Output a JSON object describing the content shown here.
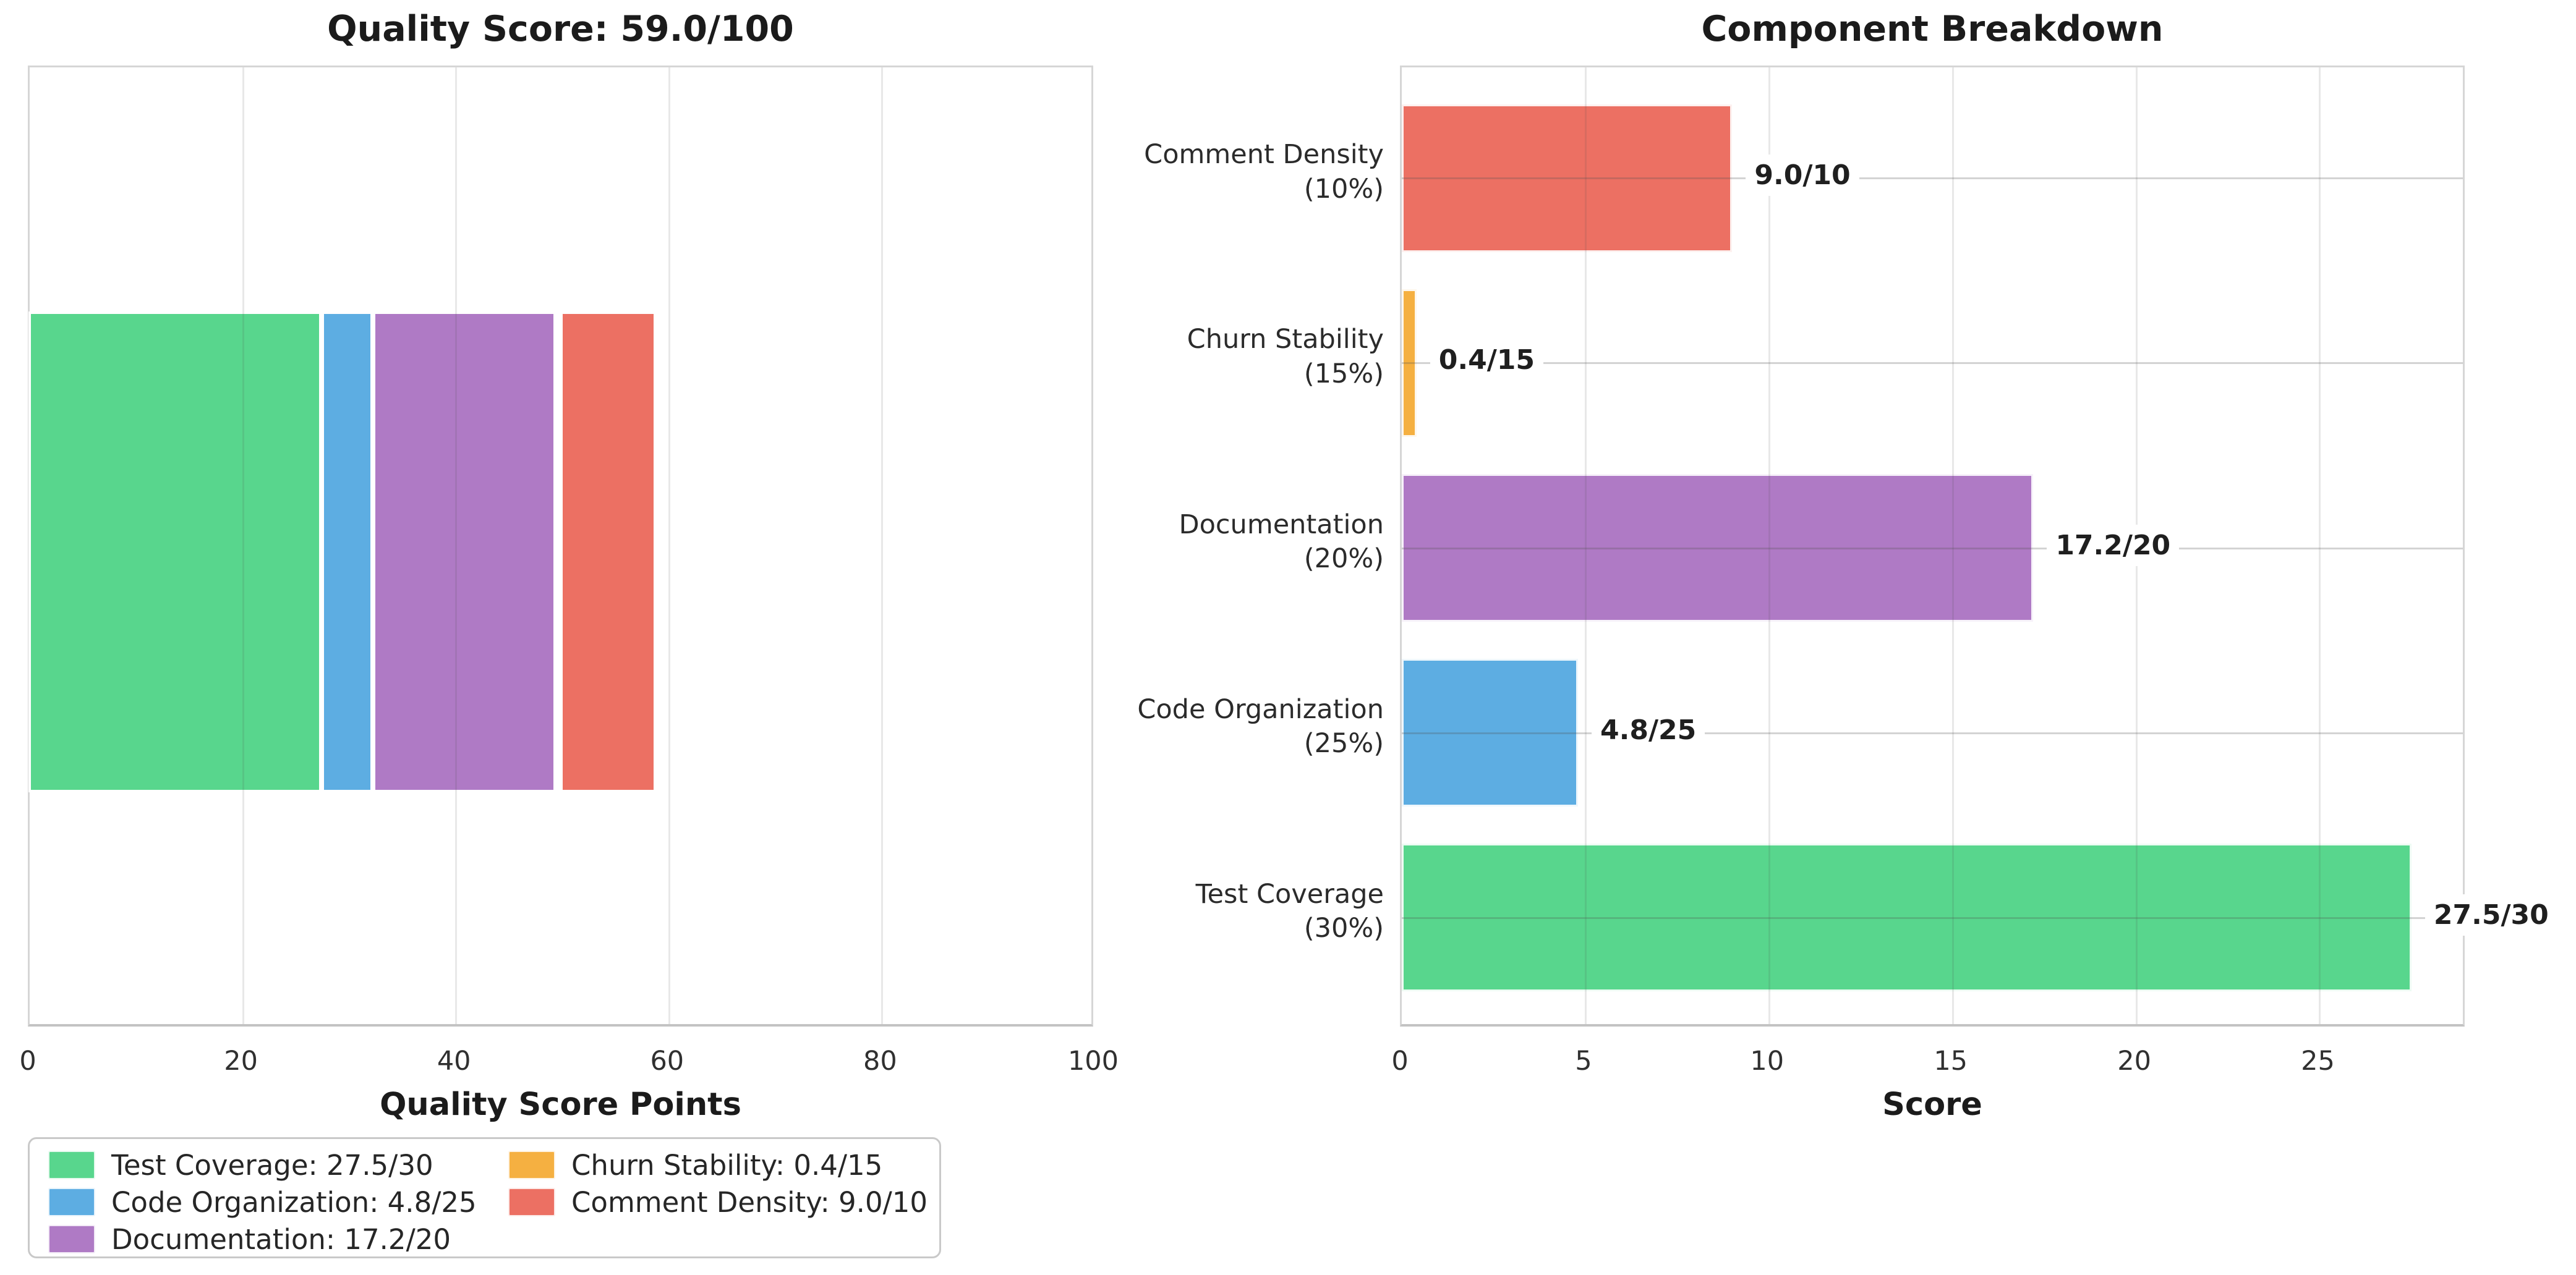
{
  "figure": {
    "background": "#ffffff",
    "text_color": "#262626"
  },
  "palette": {
    "test_coverage": "#58d68d",
    "code_organization": "#5dade2",
    "documentation": "#af7ac5",
    "churn_stability": "#f5b041",
    "comment_density": "#ec7063"
  },
  "chart_data": [
    {
      "type": "bar",
      "subtype": "horizontal-stacked",
      "title": "Quality Score: 59.0/100",
      "xlabel": "Quality Score Points",
      "xlim": [
        0,
        100
      ],
      "xticks": [
        "0",
        "20",
        "40",
        "60",
        "80",
        "100"
      ],
      "xtick_values": [
        0,
        20,
        40,
        60,
        80,
        100
      ],
      "grid": "vertical-only",
      "total": 59.0,
      "total_max": 100,
      "segments": [
        {
          "name": "Test Coverage",
          "value": 27.5,
          "max": 30,
          "color": "#58d68d"
        },
        {
          "name": "Code Organization",
          "value": 4.8,
          "max": 25,
          "color": "#5dade2"
        },
        {
          "name": "Documentation",
          "value": 17.2,
          "max": 20,
          "color": "#af7ac5"
        },
        {
          "name": "Churn Stability",
          "value": 0.4,
          "max": 15,
          "color": "#f5b041"
        },
        {
          "name": "Comment Density",
          "value": 9.0,
          "max": 10,
          "color": "#ec7063"
        }
      ]
    },
    {
      "type": "bar",
      "subtype": "horizontal",
      "title": "Component Breakdown",
      "xlabel": "Score",
      "xlim": [
        0,
        29
      ],
      "xticks": [
        "0",
        "5",
        "10",
        "15",
        "20",
        "25"
      ],
      "xtick_values": [
        0,
        5,
        10,
        15,
        20,
        25
      ],
      "grid": "both",
      "bars": [
        {
          "label": "Comment Density\n(10%)",
          "category": "Comment Density",
          "weight_pct": 10,
          "value": 9.0,
          "max": 10,
          "value_label": "9.0/10",
          "color": "#ec7063"
        },
        {
          "label": "Churn Stability\n(15%)",
          "category": "Churn Stability",
          "weight_pct": 15,
          "value": 0.4,
          "max": 15,
          "value_label": "0.4/15",
          "color": "#f5b041"
        },
        {
          "label": "Documentation\n(20%)",
          "category": "Documentation",
          "weight_pct": 20,
          "value": 17.2,
          "max": 20,
          "value_label": "17.2/20",
          "color": "#af7ac5"
        },
        {
          "label": "Code Organization\n(25%)",
          "category": "Code Organization",
          "weight_pct": 25,
          "value": 4.8,
          "max": 25,
          "value_label": "4.8/25",
          "color": "#5dade2"
        },
        {
          "label": "Test Coverage\n(30%)",
          "category": "Test Coverage",
          "weight_pct": 30,
          "value": 27.5,
          "max": 30,
          "value_label": "27.5/30",
          "color": "#58d68d"
        }
      ]
    }
  ],
  "legend": {
    "position": "lower-left",
    "columns": [
      [
        {
          "label": "Test Coverage: 27.5/30",
          "color": "#58d68d"
        },
        {
          "label": "Code Organization: 4.8/25",
          "color": "#5dade2"
        },
        {
          "label": "Documentation: 17.2/20",
          "color": "#af7ac5"
        }
      ],
      [
        {
          "label": "Churn Stability: 0.4/15",
          "color": "#f5b041"
        },
        {
          "label": "Comment Density: 9.0/10",
          "color": "#ec7063"
        }
      ]
    ]
  }
}
